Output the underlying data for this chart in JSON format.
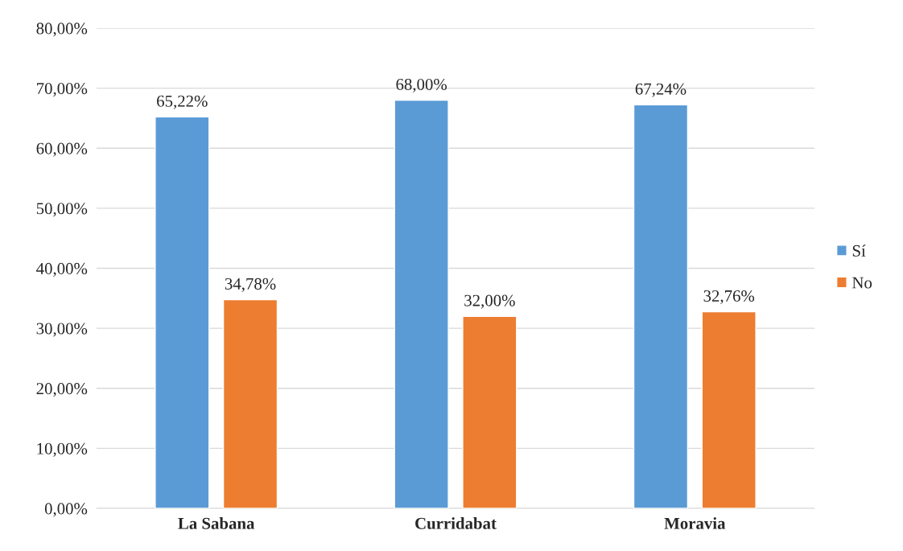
{
  "chart_data": {
    "type": "bar",
    "categories": [
      "La Sabana",
      "Curridabat",
      "Moravia"
    ],
    "series": [
      {
        "name": "Sí",
        "color": "#5b9bd5",
        "values": [
          65.22,
          68.0,
          67.24
        ],
        "value_labels": [
          "65,22%",
          "68,00%",
          "67,24%"
        ]
      },
      {
        "name": "No",
        "color": "#ed7d31",
        "values": [
          34.78,
          32.0,
          32.76
        ],
        "value_labels": [
          "34,78%",
          "32,00%",
          "32,76%"
        ]
      }
    ],
    "ylim": [
      0,
      80
    ],
    "yticks": [
      {
        "value": 0,
        "label": "0,00%"
      },
      {
        "value": 10,
        "label": "10,00%"
      },
      {
        "value": 20,
        "label": "20,00%"
      },
      {
        "value": 30,
        "label": "30,00%"
      },
      {
        "value": 40,
        "label": "40,00%"
      },
      {
        "value": 50,
        "label": "50,00%"
      },
      {
        "value": 60,
        "label": "60,00%"
      },
      {
        "value": 70,
        "label": "70,00%"
      },
      {
        "value": 80,
        "label": "80,00%"
      }
    ],
    "grid": "y",
    "legend": "right"
  }
}
